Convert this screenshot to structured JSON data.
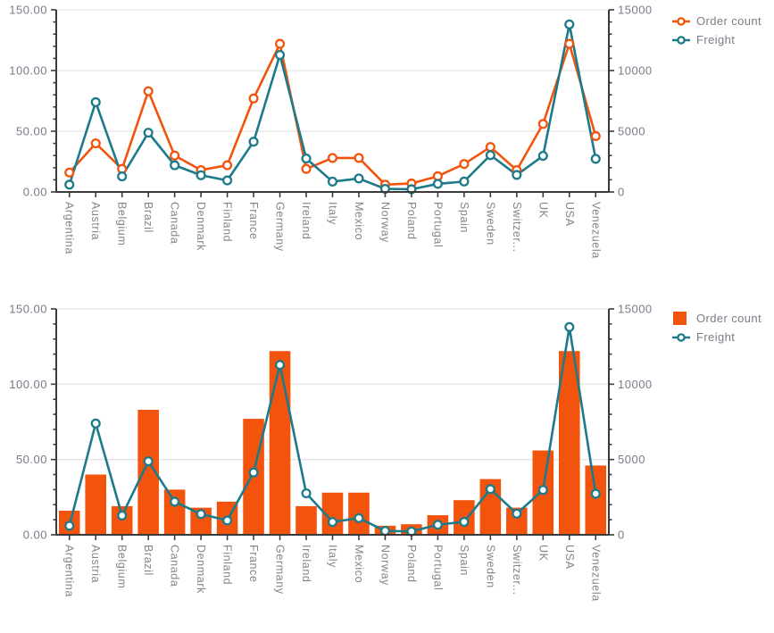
{
  "colors": {
    "order_count": "#F3540D",
    "freight": "#1C7A8A",
    "grid": "#E5E5E5",
    "axis": "#3A3A3A",
    "value_label": "#7A7989",
    "category_label": "#85848E",
    "marker_fill": "#FFFFFF",
    "background": "#FFFFFF"
  },
  "chart_data": [
    {
      "type": "line",
      "title": "",
      "categories": [
        "Argentina",
        "Austria",
        "Belgium",
        "Brazil",
        "Canada",
        "Denmark",
        "Finland",
        "France",
        "Germany",
        "Ireland",
        "Italy",
        "Mexico",
        "Norway",
        "Poland",
        "Portugal",
        "Spain",
        "Sweden",
        "Switzer...",
        "UK",
        "USA",
        "Venezuela"
      ],
      "series": [
        {
          "name": "Order count",
          "type": "line",
          "axis": "left",
          "color": "#F3540D",
          "values": [
            16,
            40,
            19,
            83,
            30,
            18,
            22,
            77,
            122,
            19,
            28,
            28,
            6,
            7,
            13,
            23,
            37,
            18,
            56,
            122,
            46
          ]
        },
        {
          "name": "Freight",
          "type": "line",
          "axis": "right",
          "color": "#1C7A8A",
          "values": [
            598.58,
            7391.5,
            1280.14,
            4880.19,
            2198.25,
            1377.1,
            948.39,
            4140.44,
            11283.28,
            2755.24,
            851.28,
            1107.78,
            257.45,
            222.04,
            666.6,
            858.21,
            3032.12,
            1404.5,
            2976.36,
            13797.04,
            2725.71
          ]
        }
      ],
      "left_axis": {
        "min": 0,
        "max": 150,
        "tick_values": [
          0,
          50,
          100,
          150
        ],
        "tick_labels": [
          "0.00",
          "50.00",
          "100.00",
          "150.00"
        ],
        "minor_step": 10
      },
      "right_axis": {
        "min": 0,
        "max": 15000,
        "tick_values": [
          0,
          5000,
          10000,
          15000
        ],
        "tick_labels": [
          "0",
          "5000",
          "10000",
          "15000"
        ],
        "minor_step": 1000
      },
      "grid": "horizontal",
      "legend_position": "top-right"
    },
    {
      "type": "column-line",
      "title": "",
      "categories": [
        "Argentina",
        "Austria",
        "Belgium",
        "Brazil",
        "Canada",
        "Denmark",
        "Finland",
        "France",
        "Germany",
        "Ireland",
        "Italy",
        "Mexico",
        "Norway",
        "Poland",
        "Portugal",
        "Spain",
        "Sweden",
        "Switzer...",
        "UK",
        "USA",
        "Venezuela"
      ],
      "series": [
        {
          "name": "Order count",
          "type": "column",
          "axis": "left",
          "color": "#F3540D",
          "values": [
            16,
            40,
            19,
            83,
            30,
            18,
            22,
            77,
            122,
            19,
            28,
            28,
            6,
            7,
            13,
            23,
            37,
            18,
            56,
            122,
            46
          ]
        },
        {
          "name": "Freight",
          "type": "line",
          "axis": "right",
          "color": "#1C7A8A",
          "values": [
            598.58,
            7391.5,
            1280.14,
            4880.19,
            2198.25,
            1377.1,
            948.39,
            4140.44,
            11283.28,
            2755.24,
            851.28,
            1107.78,
            257.45,
            222.04,
            666.6,
            858.21,
            3032.12,
            1404.5,
            2976.36,
            13797.04,
            2725.71
          ]
        }
      ],
      "left_axis": {
        "min": 0,
        "max": 150,
        "tick_values": [
          0,
          50,
          100,
          150
        ],
        "tick_labels": [
          "0.00",
          "50.00",
          "100.00",
          "150.00"
        ],
        "minor_step": 10
      },
      "right_axis": {
        "min": 0,
        "max": 15000,
        "tick_values": [
          0,
          5000,
          10000,
          15000
        ],
        "tick_labels": [
          "0",
          "5000",
          "10000",
          "15000"
        ],
        "minor_step": 1000
      },
      "grid": "horizontal",
      "legend_position": "top-right"
    }
  ]
}
